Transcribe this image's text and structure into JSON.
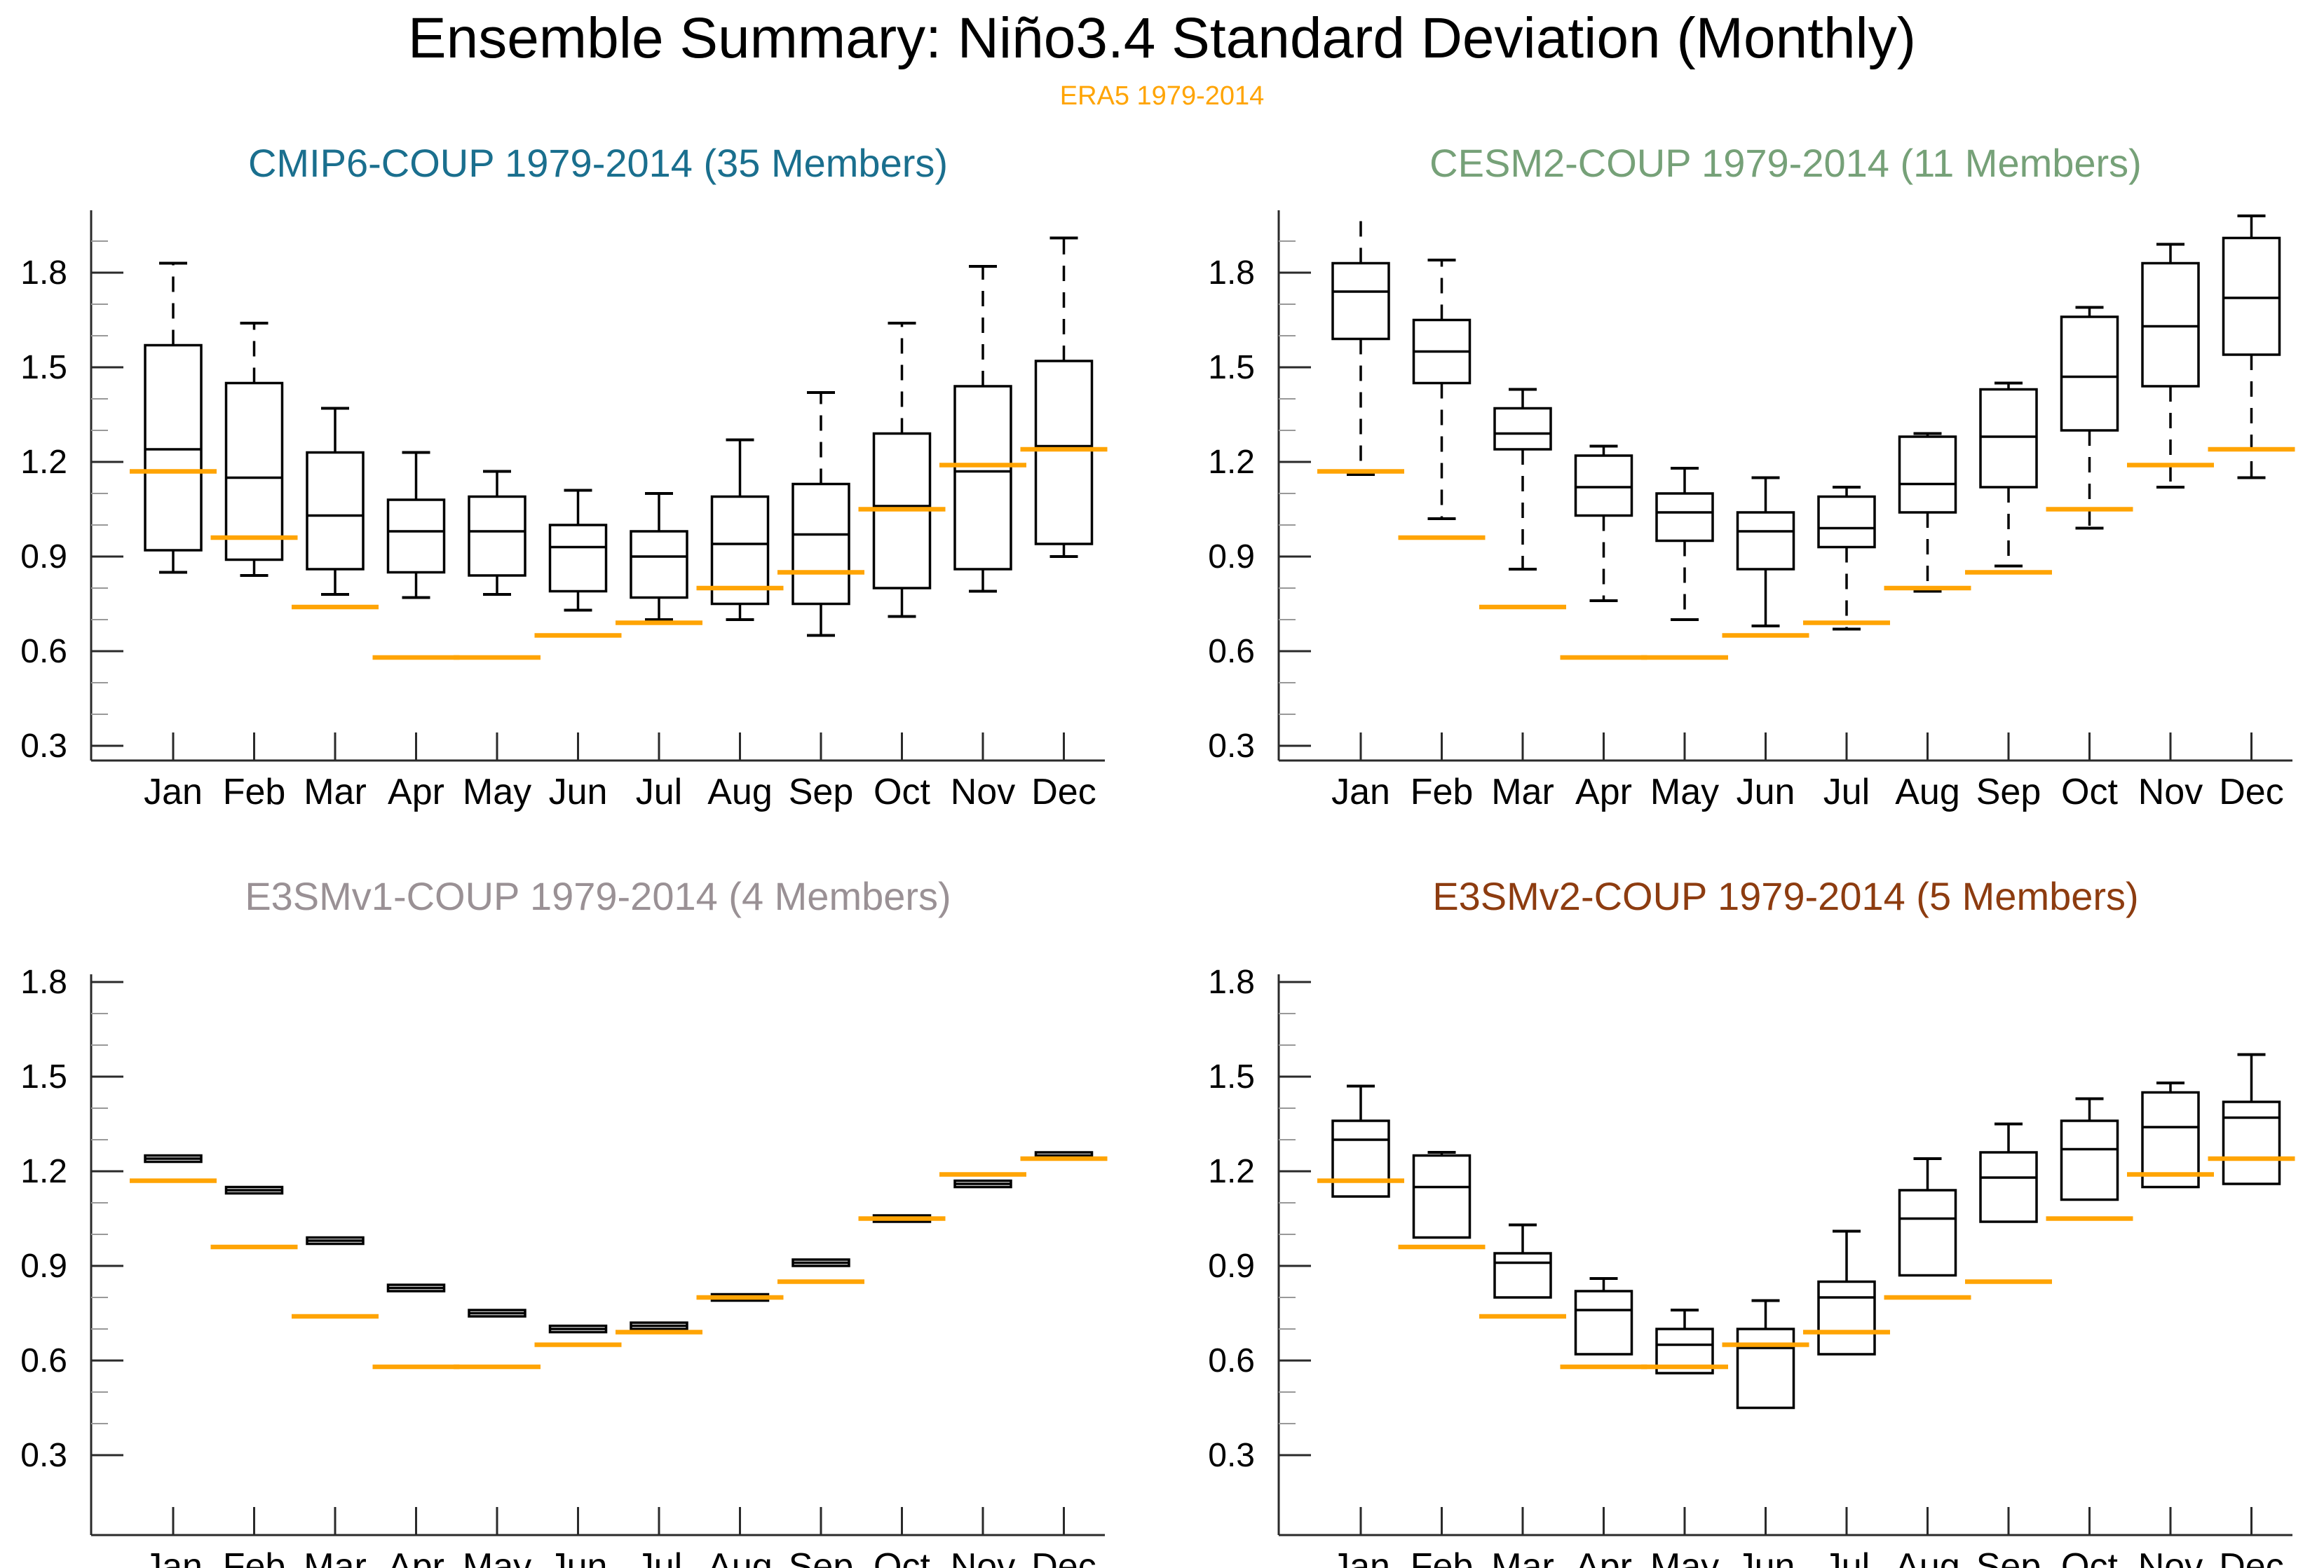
{
  "header": {
    "title": "Ensemble Summary: Niño3.4 Standard Deviation (Monthly)",
    "subtitle": "ERA5 1979-2014"
  },
  "colors": {
    "era5_orange": "#FFA404",
    "cmip6_title": "#1a6f8e",
    "cesm2_title": "#76a178",
    "e3smv1_title": "#9a9195",
    "e3smv2_title": "#8d3c10",
    "box_stroke": "#000000",
    "axis": "#2a2a2a",
    "minor_tick": "#999999"
  },
  "months": [
    "Jan",
    "Feb",
    "Mar",
    "Apr",
    "May",
    "Jun",
    "Jul",
    "Aug",
    "Sep",
    "Oct",
    "Nov",
    "Dec"
  ],
  "y_axis": {
    "major_ticks": [
      0.3,
      0.6,
      0.9,
      1.2,
      1.5,
      1.8
    ],
    "major_labels": [
      "0.3",
      "0.6",
      "0.9",
      "1.2",
      "1.5",
      "1.8"
    ],
    "minor_step": 0.1
  },
  "era5_values": [
    1.17,
    0.96,
    0.74,
    0.58,
    0.58,
    0.65,
    0.69,
    0.8,
    0.85,
    1.05,
    1.19,
    1.24
  ],
  "chart_data": [
    {
      "type": "box",
      "id": "cmip6-coup",
      "title": "CMIP6-COUP 1979-2014 (35 Members)",
      "title_color": "#1a6f8e",
      "members": 35,
      "position": "top-left",
      "stats_order": [
        "whisker_lo",
        "q1",
        "median",
        "q3",
        "whisker_hi"
      ],
      "boxes": [
        [
          0.85,
          0.92,
          1.24,
          1.57,
          1.83
        ],
        [
          0.84,
          0.89,
          1.15,
          1.45,
          1.64
        ],
        [
          0.78,
          0.86,
          1.03,
          1.23,
          1.37
        ],
        [
          0.77,
          0.85,
          0.98,
          1.08,
          1.23
        ],
        [
          0.78,
          0.84,
          0.98,
          1.09,
          1.17
        ],
        [
          0.73,
          0.79,
          0.93,
          1.0,
          1.11
        ],
        [
          0.7,
          0.77,
          0.9,
          0.98,
          1.1
        ],
        [
          0.7,
          0.75,
          0.94,
          1.09,
          1.27
        ],
        [
          0.65,
          0.75,
          0.97,
          1.13,
          1.42
        ],
        [
          0.71,
          0.8,
          1.06,
          1.29,
          1.64
        ],
        [
          0.79,
          0.86,
          1.17,
          1.44,
          1.82
        ],
        [
          0.9,
          0.94,
          1.25,
          1.52,
          1.91
        ]
      ]
    },
    {
      "type": "box",
      "id": "cesm2-coup",
      "title": "CESM2-COUP 1979-2014 (11 Members)",
      "title_color": "#76a178",
      "members": 11,
      "position": "top-right",
      "stats_order": [
        "whisker_lo",
        "q1",
        "median",
        "q3",
        "whisker_hi"
      ],
      "boxes": [
        [
          1.16,
          1.59,
          1.74,
          1.83,
          2.02
        ],
        [
          1.02,
          1.45,
          1.55,
          1.65,
          1.84
        ],
        [
          0.86,
          1.24,
          1.29,
          1.37,
          1.43
        ],
        [
          0.76,
          1.03,
          1.12,
          1.22,
          1.25
        ],
        [
          0.7,
          0.95,
          1.04,
          1.1,
          1.18
        ],
        [
          0.68,
          0.86,
          0.98,
          1.04,
          1.15
        ],
        [
          0.67,
          0.93,
          0.99,
          1.09,
          1.12
        ],
        [
          0.79,
          1.04,
          1.13,
          1.28,
          1.29
        ],
        [
          0.87,
          1.12,
          1.28,
          1.43,
          1.45
        ],
        [
          0.99,
          1.3,
          1.47,
          1.66,
          1.69
        ],
        [
          1.12,
          1.44,
          1.63,
          1.83,
          1.89
        ],
        [
          1.15,
          1.54,
          1.72,
          1.91,
          1.98
        ]
      ]
    },
    {
      "type": "box",
      "id": "e3smv1-coup",
      "title": "E3SMv1-COUP 1979-2014 (4 Members)",
      "title_color": "#9a9195",
      "members": 4,
      "position": "bottom-left",
      "stats_order": [
        "whisker_lo",
        "q1",
        "median",
        "q3",
        "whisker_hi"
      ],
      "boxes": [
        [
          1.23,
          1.23,
          1.24,
          1.25,
          1.25
        ],
        [
          1.13,
          1.13,
          1.14,
          1.15,
          1.15
        ],
        [
          0.97,
          0.97,
          0.98,
          0.99,
          0.99
        ],
        [
          0.82,
          0.82,
          0.83,
          0.84,
          0.84
        ],
        [
          0.74,
          0.74,
          0.75,
          0.76,
          0.76
        ],
        [
          0.69,
          0.69,
          0.7,
          0.71,
          0.71
        ],
        [
          0.7,
          0.7,
          0.71,
          0.72,
          0.72
        ],
        [
          0.79,
          0.79,
          0.8,
          0.81,
          0.81
        ],
        [
          0.9,
          0.9,
          0.91,
          0.92,
          0.92
        ],
        [
          1.04,
          1.04,
          1.05,
          1.06,
          1.06
        ],
        [
          1.15,
          1.15,
          1.16,
          1.17,
          1.17
        ],
        [
          1.24,
          1.24,
          1.25,
          1.26,
          1.26
        ]
      ]
    },
    {
      "type": "box",
      "id": "e3smv2-coup",
      "title": "E3SMv2-COUP 1979-2014 (5 Members)",
      "title_color": "#8d3c10",
      "members": 5,
      "position": "bottom-right",
      "stats_order": [
        "whisker_lo",
        "q1",
        "median",
        "q3",
        "whisker_hi"
      ],
      "boxes": [
        [
          1.12,
          1.12,
          1.3,
          1.36,
          1.47
        ],
        [
          0.99,
          0.99,
          1.15,
          1.25,
          1.26
        ],
        [
          0.8,
          0.8,
          0.91,
          0.94,
          1.03
        ],
        [
          0.62,
          0.62,
          0.76,
          0.82,
          0.86
        ],
        [
          0.56,
          0.56,
          0.65,
          0.7,
          0.76
        ],
        [
          0.45,
          0.45,
          0.64,
          0.7,
          0.79
        ],
        [
          0.62,
          0.62,
          0.8,
          0.85,
          1.01
        ],
        [
          0.87,
          0.87,
          1.05,
          1.14,
          1.24
        ],
        [
          1.04,
          1.04,
          1.18,
          1.26,
          1.35
        ],
        [
          1.11,
          1.11,
          1.27,
          1.36,
          1.43
        ],
        [
          1.15,
          1.15,
          1.34,
          1.45,
          1.48
        ],
        [
          1.16,
          1.16,
          1.37,
          1.42,
          1.57
        ]
      ]
    }
  ]
}
